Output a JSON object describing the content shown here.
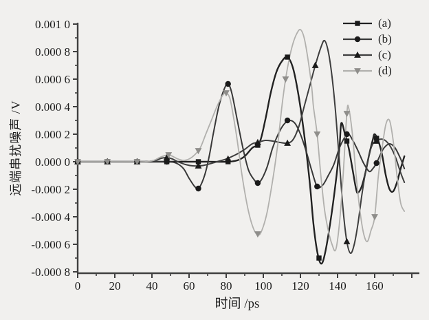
{
  "figure_title": "",
  "chart_data": {
    "type": "line",
    "title": "",
    "xlabel": "时间 /ps",
    "ylabel": "远端串扰噪声 /V",
    "xlim": [
      0,
      180
    ],
    "ylim": [
      -0.0008,
      0.001
    ],
    "grid": false,
    "legend_position": "top-right",
    "x_ticks": [
      {
        "v": 0,
        "label": "0"
      },
      {
        "v": 20,
        "label": "20"
      },
      {
        "v": 40,
        "label": "40"
      },
      {
        "v": 60,
        "label": "60"
      },
      {
        "v": 80,
        "label": "80"
      },
      {
        "v": 100,
        "label": "100"
      },
      {
        "v": 120,
        "label": "120"
      },
      {
        "v": 140,
        "label": "140"
      },
      {
        "v": 160,
        "label": "160"
      },
      {
        "v": 180,
        "label": ""
      }
    ],
    "y_ticks": [
      {
        "v": 0.001,
        "label": "0.001 0"
      },
      {
        "v": 0.0008,
        "label": "0.000 8"
      },
      {
        "v": 0.0006,
        "label": "0.000 6"
      },
      {
        "v": 0.0004,
        "label": "0.000 4"
      },
      {
        "v": 0.0002,
        "label": "0.000 2"
      },
      {
        "v": 0.0,
        "label": "0.000 0"
      },
      {
        "v": -0.0002,
        "label": "-0.000 2"
      },
      {
        "v": -0.0004,
        "label": "-0.000 4"
      },
      {
        "v": -0.0006,
        "label": "-0.000 6"
      },
      {
        "v": -0.0008,
        "label": "-0.000 8"
      }
    ],
    "axis_color": "#3f3f3f",
    "series": [
      {
        "name": "(a)",
        "marker": "square",
        "color": "#222222",
        "marker_color": "#1a1a1a",
        "line_width": 2.4,
        "points": [
          [
            0,
            0
          ],
          [
            12,
            0
          ],
          [
            24,
            0
          ],
          [
            36,
            0
          ],
          [
            48,
            0
          ],
          [
            60,
            0
          ],
          [
            70,
            0
          ],
          [
            81,
            0
          ],
          [
            86,
            1e-05
          ],
          [
            90,
            4e-05
          ],
          [
            94,
            0.0001
          ],
          [
            98,
            0.00014
          ],
          [
            101,
            0.0003
          ],
          [
            104,
            0.0005
          ],
          [
            107,
            0.00065
          ],
          [
            110,
            0.00073
          ],
          [
            113,
            0.00076
          ],
          [
            116,
            0.00068
          ],
          [
            119,
            0.00048
          ],
          [
            122,
            0.0002
          ],
          [
            125,
            -0.00015
          ],
          [
            127,
            -0.00045
          ],
          [
            129,
            -0.00065
          ],
          [
            131,
            -0.00074
          ],
          [
            133,
            -0.00068
          ],
          [
            136,
            -0.00045
          ],
          [
            139,
            -0.00015
          ],
          [
            141,
            0.0001
          ],
          [
            142,
            0.00028
          ],
          [
            144,
            0.0002
          ],
          [
            146,
            0.0001
          ],
          [
            148,
            -5e-05
          ],
          [
            150,
            -0.0002
          ],
          [
            151,
            -0.000225
          ],
          [
            153,
            -0.00018
          ],
          [
            155,
            -8e-05
          ],
          [
            157,
            5e-05
          ],
          [
            159,
            0.00016
          ],
          [
            160,
            0.0002
          ],
          [
            162,
            0.00015
          ],
          [
            164,
            5e-05
          ],
          [
            166,
            -0.0001
          ],
          [
            168,
            -0.0002
          ],
          [
            170,
            -0.000215
          ],
          [
            172,
            -0.00015
          ],
          [
            174,
            -5e-05
          ],
          [
            176,
            4e-05
          ]
        ],
        "marker_points": [
          [
            0,
            0
          ],
          [
            16,
            0
          ],
          [
            32,
            0
          ],
          [
            48,
            0
          ],
          [
            65,
            0
          ],
          [
            81,
            0
          ],
          [
            97,
            0.00012
          ],
          [
            113,
            0.00076
          ],
          [
            130,
            -0.0007
          ],
          [
            145,
            0.00015
          ],
          [
            161,
            0.00017
          ]
        ]
      },
      {
        "name": "(b)",
        "marker": "circle",
        "color": "#383838",
        "marker_color": "#1a1a1a",
        "line_width": 2.0,
        "points": [
          [
            0,
            0
          ],
          [
            12,
            0
          ],
          [
            24,
            0
          ],
          [
            36,
            0
          ],
          [
            48,
            0
          ],
          [
            53,
            -1e-05
          ],
          [
            57,
            -5e-05
          ],
          [
            60,
            -0.00012
          ],
          [
            63,
            -0.00018
          ],
          [
            65,
            -0.000195
          ],
          [
            67,
            -0.00015
          ],
          [
            69,
            -7e-05
          ],
          [
            71,
            5e-05
          ],
          [
            73,
            0.0002
          ],
          [
            76,
            0.0004
          ],
          [
            79,
            0.00053
          ],
          [
            81,
            0.000565
          ],
          [
            83,
            0.0005
          ],
          [
            86,
            0.0003
          ],
          [
            89,
            0.0001
          ],
          [
            92,
            -6e-05
          ],
          [
            95,
            -0.00013
          ],
          [
            97,
            -0.000155
          ],
          [
            99,
            -0.00013
          ],
          [
            102,
            -4e-05
          ],
          [
            105,
            0.0001
          ],
          [
            108,
            0.0002
          ],
          [
            111,
            0.00027
          ],
          [
            114,
            0.0003
          ],
          [
            117,
            0.00028
          ],
          [
            120,
            0.0002
          ],
          [
            123,
            8e-05
          ],
          [
            126,
            -6e-05
          ],
          [
            129,
            -0.00018
          ],
          [
            132,
            -0.00017
          ],
          [
            135,
            -0.0001
          ],
          [
            138,
            -2e-05
          ],
          [
            141,
            0.0001
          ],
          [
            144,
            0.00018
          ],
          [
            146,
            0.0002
          ],
          [
            148,
            0.00016
          ],
          [
            151,
            8e-05
          ],
          [
            154,
            -1e-05
          ],
          [
            157,
            -7e-05
          ],
          [
            159,
            -5e-05
          ],
          [
            161,
            -1e-05
          ],
          [
            163,
            5e-05
          ],
          [
            165,
            0.0001
          ],
          [
            168,
            0.00013
          ],
          [
            171,
            0.0001
          ],
          [
            174,
            2e-05
          ],
          [
            176,
            -5e-05
          ]
        ],
        "marker_points": [
          [
            0,
            0
          ],
          [
            16,
            0
          ],
          [
            32,
            0
          ],
          [
            48,
            0
          ],
          [
            65,
            -0.000195
          ],
          [
            81,
            0.000565
          ],
          [
            97,
            -0.000155
          ],
          [
            113,
            0.0003
          ],
          [
            129,
            -0.00018
          ],
          [
            145,
            0.0002
          ],
          [
            161,
            -1e-05
          ]
        ]
      },
      {
        "name": "(c)",
        "marker": "triangle-up",
        "color": "#3e3e3e",
        "marker_color": "#1a1a1a",
        "line_width": 2.0,
        "points": [
          [
            0,
            0
          ],
          [
            12,
            0
          ],
          [
            24,
            0
          ],
          [
            36,
            0
          ],
          [
            42,
            1e-05
          ],
          [
            45,
            2.5e-05
          ],
          [
            48,
            3e-05
          ],
          [
            51,
            2e-05
          ],
          [
            54,
            0
          ],
          [
            58,
            -2e-05
          ],
          [
            62,
            -3e-05
          ],
          [
            66,
            -3e-05
          ],
          [
            70,
            -2e-05
          ],
          [
            75,
            0
          ],
          [
            80,
            2e-05
          ],
          [
            85,
            5e-05
          ],
          [
            90,
            9e-05
          ],
          [
            94,
            0.00013
          ],
          [
            97,
            0.00014
          ],
          [
            101,
            0.000155
          ],
          [
            105,
            0.00015
          ],
          [
            109,
            0.00014
          ],
          [
            113,
            0.000135
          ],
          [
            116,
            0.00016
          ],
          [
            119,
            0.00025
          ],
          [
            122,
            0.0004
          ],
          [
            125,
            0.00055
          ],
          [
            128,
            0.0007
          ],
          [
            131,
            0.00083
          ],
          [
            133,
            0.00088
          ],
          [
            135,
            0.0008
          ],
          [
            137,
            0.00062
          ],
          [
            139,
            0.00035
          ],
          [
            141,
            0
          ],
          [
            143,
            -0.00035
          ],
          [
            145,
            -0.00058
          ],
          [
            147,
            -0.000665
          ],
          [
            149,
            -0.0006
          ],
          [
            151,
            -0.00045
          ],
          [
            153,
            -0.00025
          ],
          [
            155,
            -8e-05
          ],
          [
            157,
            5e-05
          ],
          [
            159,
            0.00013
          ],
          [
            162,
            0.00016
          ],
          [
            165,
            0.00016
          ],
          [
            168,
            0.00012
          ],
          [
            171,
            4e-05
          ],
          [
            174,
            -8e-05
          ],
          [
            176,
            -0.00015
          ]
        ],
        "marker_points": [
          [
            0,
            0
          ],
          [
            16,
            0
          ],
          [
            32,
            0
          ],
          [
            48,
            3e-05
          ],
          [
            65,
            -3e-05
          ],
          [
            81,
            2e-05
          ],
          [
            97,
            0.00014
          ],
          [
            113,
            0.000135
          ],
          [
            128,
            0.0007
          ],
          [
            145,
            -0.00058
          ],
          [
            161,
            0.00015
          ]
        ]
      },
      {
        "name": "(d)",
        "marker": "triangle-down",
        "color": "#b1b0ad",
        "marker_color": "#8f8e8b",
        "line_width": 1.8,
        "points": [
          [
            0,
            0
          ],
          [
            12,
            0
          ],
          [
            24,
            0
          ],
          [
            36,
            0
          ],
          [
            41,
            1e-05
          ],
          [
            44,
            3e-05
          ],
          [
            47,
            4.5e-05
          ],
          [
            49,
            5e-05
          ],
          [
            51,
            4e-05
          ],
          [
            54,
            2e-05
          ],
          [
            57,
            1e-05
          ],
          [
            60,
            2e-05
          ],
          [
            63,
            5e-05
          ],
          [
            66,
            0.0001
          ],
          [
            69,
            0.0002
          ],
          [
            72,
            0.0003
          ],
          [
            75,
            0.0004
          ],
          [
            78,
            0.00048
          ],
          [
            80,
            0.0005
          ],
          [
            82,
            0.00046
          ],
          [
            84,
            0.00032
          ],
          [
            86,
            0.00015
          ],
          [
            88,
            -5e-05
          ],
          [
            90,
            -0.00022
          ],
          [
            92,
            -0.00036
          ],
          [
            94,
            -0.00046
          ],
          [
            96,
            -0.00052
          ],
          [
            98,
            -0.00053
          ],
          [
            100,
            -0.00047
          ],
          [
            102,
            -0.00037
          ],
          [
            104,
            -0.00022
          ],
          [
            106,
            -5e-05
          ],
          [
            108,
            0.00015
          ],
          [
            110,
            0.0004
          ],
          [
            112,
            0.0006
          ],
          [
            114,
            0.00075
          ],
          [
            116,
            0.00086
          ],
          [
            118,
            0.00093
          ],
          [
            120,
            0.00096
          ],
          [
            122,
            0.0009
          ],
          [
            124,
            0.00075
          ],
          [
            126,
            0.00055
          ],
          [
            127,
            0.0004
          ],
          [
            129,
            0.0002
          ],
          [
            131,
            -0.0001
          ],
          [
            133,
            -0.00035
          ],
          [
            135,
            -0.0005
          ],
          [
            137,
            -0.0006
          ],
          [
            139,
            -0.00064
          ],
          [
            141,
            -0.00045
          ],
          [
            143,
            -0.0001
          ],
          [
            145,
            0.00035
          ],
          [
            146,
            0.00039
          ],
          [
            148,
            0.0002
          ],
          [
            150,
            -0.0001
          ],
          [
            152,
            -0.00035
          ],
          [
            154,
            -0.00052
          ],
          [
            156,
            -0.00058
          ],
          [
            158,
            -0.0005
          ],
          [
            160,
            -0.0004
          ],
          [
            162,
            -0.0001
          ],
          [
            164,
            0.0001
          ],
          [
            166,
            0.00027
          ],
          [
            168,
            0.0003
          ],
          [
            170,
            0.00015
          ],
          [
            172,
            -0.0001
          ],
          [
            174,
            -0.0003
          ],
          [
            176,
            -0.00036
          ]
        ],
        "marker_points": [
          [
            0,
            0
          ],
          [
            16,
            0
          ],
          [
            32,
            0
          ],
          [
            49,
            5e-05
          ],
          [
            65,
            8e-05
          ],
          [
            80,
            0.0005
          ],
          [
            97,
            -0.000525
          ],
          [
            112,
            0.0006
          ],
          [
            129,
            0.0002
          ],
          [
            145,
            0.00035
          ],
          [
            160,
            -0.0004
          ]
        ]
      }
    ]
  }
}
